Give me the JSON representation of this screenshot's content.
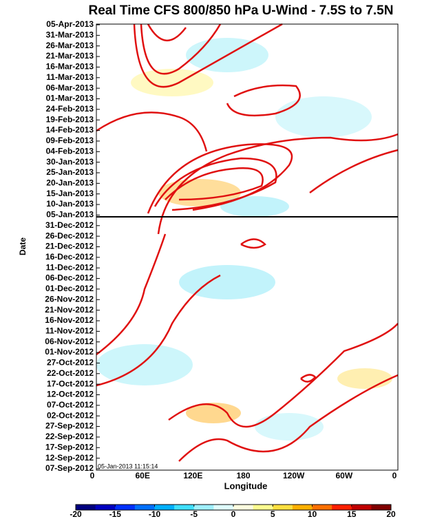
{
  "chart_data": {
    "type": "hovmoller",
    "title": "Real Time CFS 800/850 hPa U-Wind - 7.5S to 7.5N",
    "ylabel": "Date",
    "xlabel": "Longitude",
    "timestamp": "05-Jan-2013 11:15:14",
    "y_categories": [
      "05-Apr-2013",
      "31-Mar-2013",
      "26-Mar-2013",
      "21-Mar-2013",
      "16-Mar-2013",
      "11-Mar-2013",
      "06-Mar-2013",
      "01-Mar-2013",
      "24-Feb-2013",
      "19-Feb-2013",
      "14-Feb-2013",
      "09-Feb-2013",
      "04-Feb-2013",
      "30-Jan-2013",
      "25-Jan-2013",
      "20-Jan-2013",
      "15-Jan-2013",
      "10-Jan-2013",
      "05-Jan-2013",
      "31-Dec-2012",
      "26-Dec-2012",
      "21-Dec-2012",
      "16-Dec-2012",
      "11-Dec-2012",
      "06-Dec-2012",
      "01-Dec-2012",
      "26-Nov-2012",
      "21-Nov-2012",
      "16-Nov-2012",
      "11-Nov-2012",
      "06-Nov-2012",
      "01-Nov-2012",
      "27-Oct-2012",
      "22-Oct-2012",
      "17-Oct-2012",
      "12-Oct-2012",
      "07-Oct-2012",
      "02-Oct-2012",
      "27-Sep-2012",
      "22-Sep-2012",
      "17-Sep-2012",
      "12-Sep-2012",
      "07-Sep-2012"
    ],
    "x_categories": [
      "0",
      "60E",
      "120E",
      "180",
      "120W",
      "60W",
      "0"
    ],
    "clim": [
      -20,
      20
    ],
    "cticks": [
      -20,
      -15,
      -10,
      -5,
      0,
      5,
      10,
      15,
      20
    ],
    "colors": [
      "#00007f",
      "#0000c0",
      "#0030ff",
      "#0070ff",
      "#00b0ff",
      "#40e0ff",
      "#a0f0ff",
      "#e0ffff",
      "#ffffe0",
      "#ffff90",
      "#ffe040",
      "#ffb000",
      "#ff7000",
      "#ff2000",
      "#c00000",
      "#800000"
    ]
  }
}
